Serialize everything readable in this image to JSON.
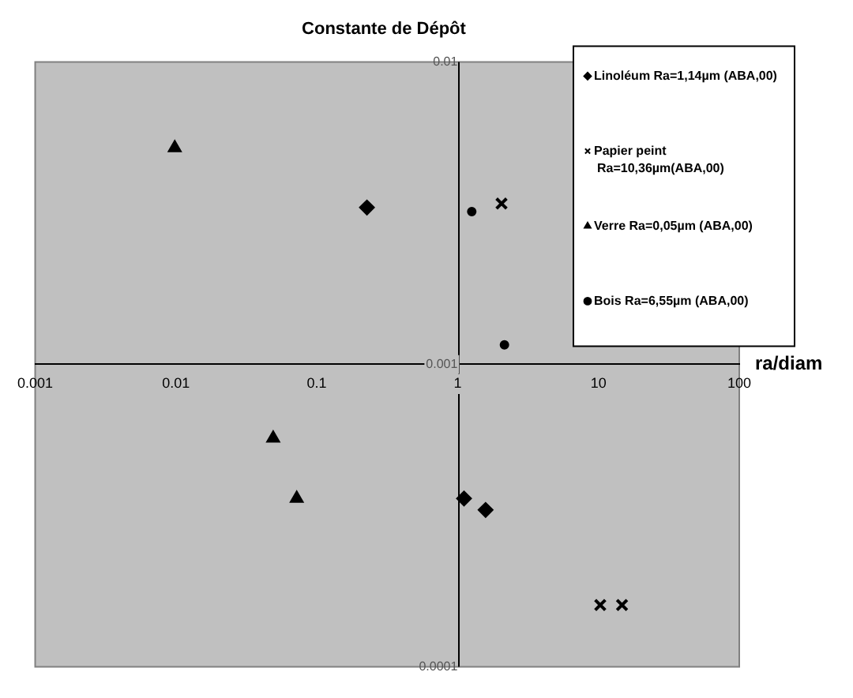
{
  "chart_data": {
    "type": "scatter",
    "title": "Constante de Dépôt",
    "xlabel": "ra/diam",
    "log": "xy",
    "xlim": [
      0.001,
      100
    ],
    "ylim": [
      0.0001,
      0.01
    ],
    "xticks": [
      0.001,
      0.01,
      0.1,
      1,
      10,
      100
    ],
    "yticks": [
      0.0001,
      0.001,
      0.01
    ],
    "grid": false,
    "legend": "top right",
    "series": [
      {
        "name": "Linoléum Ra=1,14µm (ABA,00)",
        "color": "#000000",
        "marker": "diamond",
        "x": [
          0.227,
          1.11,
          1.58
        ],
        "values": [
          0.0033,
          0.00036,
          0.00033
        ]
      },
      {
        "name": "Papier peint Ra=10,36µm(ABA,00)",
        "color": "#000000",
        "marker": "cross",
        "x": [
          2.05,
          10.3,
          14.7
        ],
        "values": [
          0.0034,
          0.00016,
          0.00016
        ]
      },
      {
        "name": "Verre Ra=0,05µm (ABA,00)",
        "color": "#000000",
        "marker": "triangle",
        "x": [
          0.0098,
          0.049,
          0.072
        ],
        "values": [
          0.0052,
          0.00057,
          0.00036
        ]
      },
      {
        "name": "Bois Ra=6,55µm (ABA,00)",
        "color": "#000000",
        "marker": "circle",
        "x": [
          1.26,
          2.15
        ],
        "values": [
          0.0032,
          0.00116
        ]
      }
    ]
  }
}
